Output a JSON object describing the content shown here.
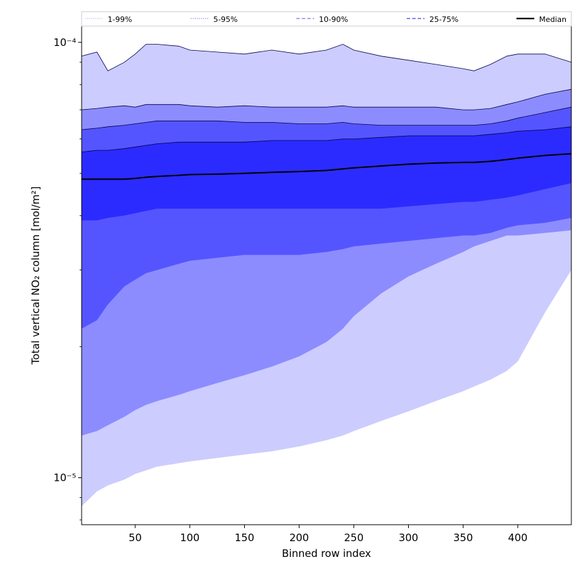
{
  "chart_data": {
    "type": "area",
    "xlabel": "Binned row index",
    "ylabel": "Total vertical NO₂ column [mol/m²]",
    "x_scale": "linear",
    "y_scale": "log",
    "xlim": [
      1,
      449
    ],
    "ylim": [
      7.8e-06,
      0.000109
    ],
    "x_ticks": [
      50,
      100,
      150,
      200,
      250,
      300,
      350,
      400
    ],
    "y_ticks": [
      {
        "value": 1e-05,
        "label": "10⁻⁵"
      },
      {
        "value": 0.0001,
        "label": "10⁻⁴"
      }
    ],
    "grid": false,
    "legend_position": "top",
    "legend": [
      {
        "label": "1-99%",
        "style": "dotted",
        "color": "#c8c8f5"
      },
      {
        "label": "5-95%",
        "style": "dotted",
        "color": "#9a9aee"
      },
      {
        "label": "10-90%",
        "style": "dashed",
        "color": "#7a7af0"
      },
      {
        "label": "25-75%",
        "style": "dashed",
        "color": "#4646e6"
      },
      {
        "label": "Median",
        "style": "solid",
        "color": "#000000"
      }
    ],
    "colors": {
      "band_1_99": "#ccccff",
      "band_5_95": "#8c8cff",
      "band_10_90": "#5555ff",
      "band_25_75": "#2b2bff",
      "median": "#000000",
      "edge": "#00004a"
    },
    "x": [
      1,
      15,
      25,
      40,
      50,
      60,
      70,
      90,
      100,
      125,
      150,
      175,
      200,
      225,
      240,
      250,
      275,
      300,
      325,
      350,
      360,
      375,
      390,
      400,
      425,
      449
    ],
    "series": [
      {
        "name": "1-99%",
        "upper": [
          9.3e-05,
          9.5e-05,
          8.6e-05,
          9e-05,
          9.4e-05,
          9.9e-05,
          9.9e-05,
          9.8e-05,
          9.6e-05,
          9.5e-05,
          9.4e-05,
          9.6e-05,
          9.4e-05,
          9.6e-05,
          9.9e-05,
          9.6e-05,
          9.3e-05,
          9.1e-05,
          8.9e-05,
          8.7e-05,
          8.6e-05,
          8.9e-05,
          9.3e-05,
          9.4e-05,
          9.4e-05,
          9e-05
        ],
        "lower": [
          8.6e-06,
          9.3e-06,
          9.6e-06,
          9.9e-06,
          1.02e-05,
          1.04e-05,
          1.06e-05,
          1.08e-05,
          1.09e-05,
          1.11e-05,
          1.13e-05,
          1.15e-05,
          1.18e-05,
          1.22e-05,
          1.25e-05,
          1.28e-05,
          1.35e-05,
          1.42e-05,
          1.5e-05,
          1.58e-05,
          1.62e-05,
          1.68e-05,
          1.76e-05,
          1.85e-05,
          2.4e-05,
          3e-05
        ]
      },
      {
        "name": "5-95%",
        "upper": [
          7e-05,
          7.05e-05,
          7.1e-05,
          7.15e-05,
          7.1e-05,
          7.2e-05,
          7.2e-05,
          7.2e-05,
          7.15e-05,
          7.1e-05,
          7.15e-05,
          7.1e-05,
          7.1e-05,
          7.1e-05,
          7.15e-05,
          7.1e-05,
          7.1e-05,
          7.1e-05,
          7.1e-05,
          7e-05,
          7e-05,
          7.05e-05,
          7.2e-05,
          7.3e-05,
          7.6e-05,
          7.8e-05
        ],
        "lower": [
          1.25e-05,
          1.28e-05,
          1.32e-05,
          1.38e-05,
          1.43e-05,
          1.47e-05,
          1.5e-05,
          1.55e-05,
          1.58e-05,
          1.65e-05,
          1.72e-05,
          1.8e-05,
          1.9e-05,
          2.05e-05,
          2.2e-05,
          2.35e-05,
          2.65e-05,
          2.9e-05,
          3.1e-05,
          3.3e-05,
          3.4e-05,
          3.5e-05,
          3.6e-05,
          3.6e-05,
          3.65e-05,
          3.7e-05
        ]
      },
      {
        "name": "10-90%",
        "upper": [
          6.3e-05,
          6.35e-05,
          6.4e-05,
          6.45e-05,
          6.5e-05,
          6.55e-05,
          6.6e-05,
          6.6e-05,
          6.6e-05,
          6.6e-05,
          6.55e-05,
          6.55e-05,
          6.5e-05,
          6.5e-05,
          6.55e-05,
          6.5e-05,
          6.45e-05,
          6.45e-05,
          6.45e-05,
          6.45e-05,
          6.45e-05,
          6.5e-05,
          6.6e-05,
          6.7e-05,
          6.9e-05,
          7.1e-05
        ],
        "lower": [
          2.2e-05,
          2.3e-05,
          2.5e-05,
          2.75e-05,
          2.85e-05,
          2.95e-05,
          3e-05,
          3.1e-05,
          3.15e-05,
          3.2e-05,
          3.25e-05,
          3.25e-05,
          3.25e-05,
          3.3e-05,
          3.35e-05,
          3.4e-05,
          3.45e-05,
          3.5e-05,
          3.55e-05,
          3.6e-05,
          3.6e-05,
          3.65e-05,
          3.75e-05,
          3.8e-05,
          3.85e-05,
          3.95e-05
        ]
      },
      {
        "name": "25-75%",
        "upper": [
          5.6e-05,
          5.65e-05,
          5.65e-05,
          5.7e-05,
          5.75e-05,
          5.8e-05,
          5.85e-05,
          5.9e-05,
          5.9e-05,
          5.9e-05,
          5.9e-05,
          5.95e-05,
          5.95e-05,
          5.95e-05,
          6e-05,
          6e-05,
          6.05e-05,
          6.1e-05,
          6.1e-05,
          6.1e-05,
          6.1e-05,
          6.15e-05,
          6.2e-05,
          6.25e-05,
          6.3e-05,
          6.4e-05
        ],
        "lower": [
          3.9e-05,
          3.9e-05,
          3.95e-05,
          4e-05,
          4.05e-05,
          4.1e-05,
          4.15e-05,
          4.15e-05,
          4.15e-05,
          4.15e-05,
          4.15e-05,
          4.15e-05,
          4.15e-05,
          4.15e-05,
          4.15e-05,
          4.15e-05,
          4.15e-05,
          4.2e-05,
          4.25e-05,
          4.3e-05,
          4.3e-05,
          4.35e-05,
          4.4e-05,
          4.45e-05,
          4.6e-05,
          4.75e-05
        ]
      },
      {
        "name": "Median",
        "values": [
          4.85e-05,
          4.85e-05,
          4.85e-05,
          4.85e-05,
          4.87e-05,
          4.9e-05,
          4.92e-05,
          4.95e-05,
          4.97e-05,
          4.98e-05,
          5e-05,
          5.03e-05,
          5.05e-05,
          5.08e-05,
          5.12e-05,
          5.15e-05,
          5.2e-05,
          5.25e-05,
          5.28e-05,
          5.3e-05,
          5.3e-05,
          5.33e-05,
          5.38e-05,
          5.42e-05,
          5.5e-05,
          5.55e-05
        ]
      }
    ]
  }
}
